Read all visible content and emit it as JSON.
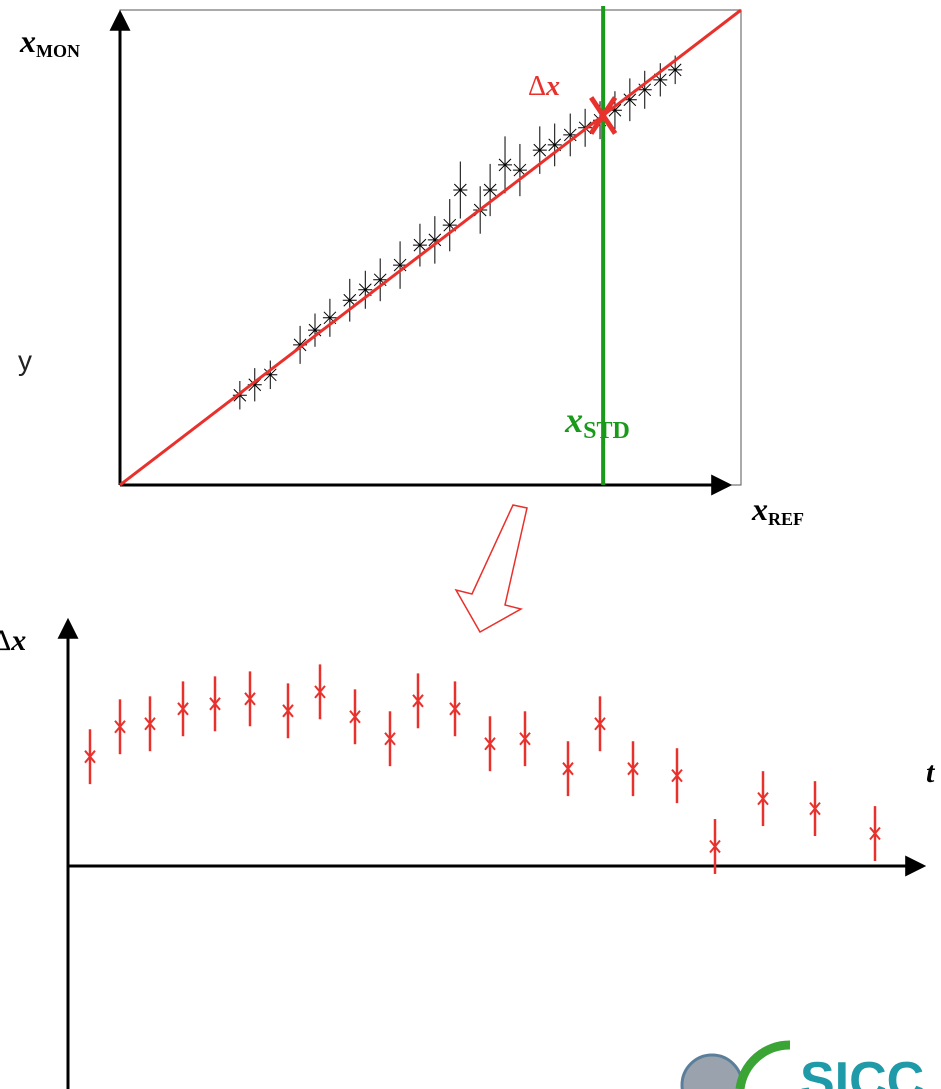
{
  "chart_data": [
    {
      "type": "scatter",
      "xlabel": {
        "text": "x",
        "sub": "REF"
      },
      "ylabel": {
        "text": "x",
        "sub": "MON"
      },
      "xlim": [
        0,
        10
      ],
      "ylim": [
        0,
        10
      ],
      "x": [
        1.93,
        2.17,
        2.42,
        2.9,
        3.14,
        3.38,
        3.7,
        3.95,
        4.19,
        4.51,
        4.83,
        5.07,
        5.31,
        5.48,
        5.8,
        5.96,
        6.2,
        6.44,
        6.76,
        7.0,
        7.25,
        7.49,
        7.73,
        7.97,
        8.21,
        8.45,
        8.7,
        8.94
      ],
      "series": [
        {
          "color": "#000000",
          "values": [
            1.89,
            2.11,
            2.32,
            2.95,
            3.26,
            3.52,
            3.89,
            4.11,
            4.32,
            4.63,
            5.05,
            5.16,
            5.47,
            6.21,
            5.79,
            6.21,
            6.74,
            6.63,
            7.05,
            7.16,
            7.37,
            7.52,
            7.68,
            7.89,
            8.11,
            8.32,
            8.53,
            8.74
          ],
          "errors": [
            0.3,
            0.35,
            0.3,
            0.4,
            0.35,
            0.4,
            0.45,
            0.4,
            0.45,
            0.5,
            0.45,
            0.5,
            0.55,
            0.6,
            0.5,
            0.55,
            0.6,
            0.55,
            0.5,
            0.45,
            0.45,
            0.4,
            0.4,
            0.4,
            0.45,
            0.4,
            0.35,
            0.3
          ]
        }
      ],
      "reference_line": {
        "color": "#e8312c",
        "x": [
          0,
          10
        ],
        "values": [
          0,
          10
        ]
      },
      "standard": {
        "color": "#1a9a1a",
        "value": 7.78,
        "label": {
          "text": "x",
          "sub": "STD"
        }
      },
      "delta": {
        "color": "#e8312c",
        "symbol": "Δ",
        "text": "x"
      }
    },
    {
      "type": "errorbar",
      "xlabel": "t",
      "ylabel": {
        "symbol": "Δ",
        "text": "x"
      },
      "xlim": [
        0,
        34
      ],
      "ylim": [
        -9,
        10
      ],
      "color": "#e8312c",
      "x": [
        0.88,
        2.08,
        3.28,
        4.6,
        5.88,
        7.28,
        8.8,
        10.08,
        11.48,
        12.88,
        14.0,
        15.48,
        16.88,
        18.28,
        20.0,
        21.28,
        22.6,
        24.36,
        25.88,
        27.8,
        29.88,
        32.28
      ],
      "values": [
        4.32,
        5.52,
        5.64,
        6.24,
        6.44,
        6.64,
        6.16,
        6.92,
        5.92,
        5.04,
        6.56,
        6.24,
        4.84,
        5.04,
        3.84,
        5.64,
        3.84,
        3.56,
        0.72,
        2.64,
        2.24,
        1.24
      ],
      "errors": [
        1.1,
        1.1,
        1.1,
        1.1,
        1.1,
        1.1,
        1.1,
        1.1,
        1.1,
        1.1,
        1.1,
        1.1,
        1.1,
        1.1,
        1.1,
        1.1,
        1.1,
        1.1,
        1.1,
        1.1,
        1.1,
        1.1
      ]
    }
  ],
  "fragments": {
    "left_text": "y",
    "logo": "SICC"
  }
}
